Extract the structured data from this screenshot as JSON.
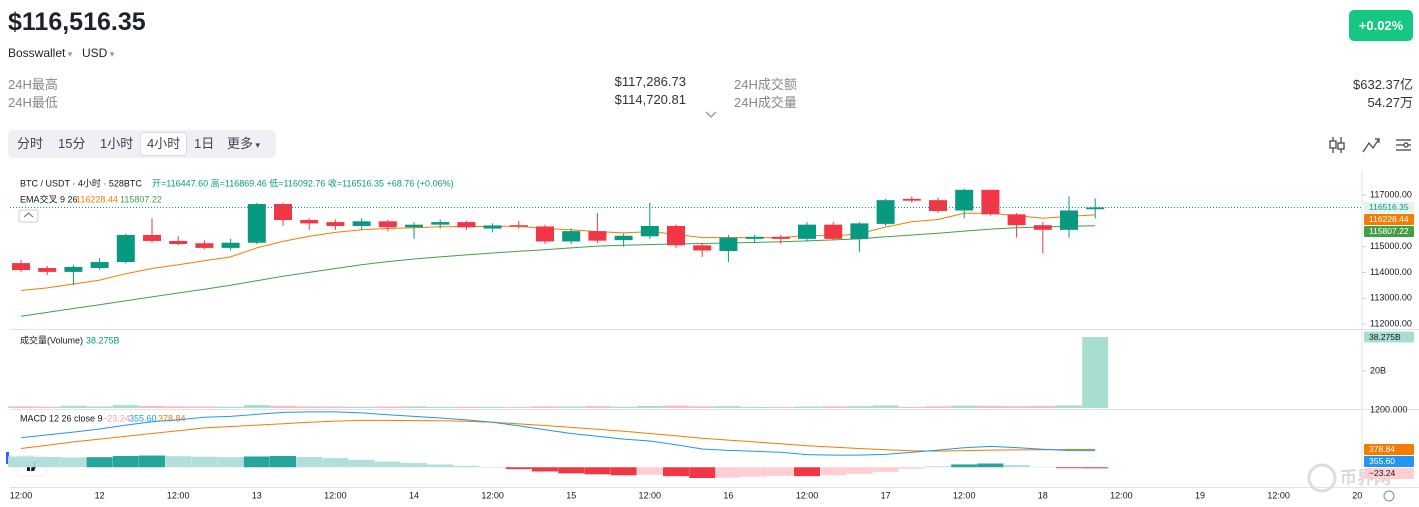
{
  "header": {
    "price": "$116,516.35",
    "wallet": "Bosswallet",
    "currency": "USD",
    "change": "+0.02%"
  },
  "stats": {
    "high_label": "24H最高",
    "high": "$117,286.73",
    "low_label": "24H最低",
    "low": "$114,720.81",
    "turnover_label": "24H成交额",
    "turnover": "$632.37亿",
    "volume_label": "24H成交量",
    "volume": "54.27万"
  },
  "tabs": [
    "分时",
    "15分",
    "1小时",
    "4小时",
    "1日",
    "更多"
  ],
  "active_tab": 3,
  "watermark": "币界网",
  "chart_data": [
    {
      "type": "candlestick",
      "symbol": "BTC / USDT · 4小时 · 528BTC",
      "ohlc_legend": "开=116447.60 高=116869.46 低=116092.76 收=116516.35 +68.76 (+0.06%)",
      "indicator": "EMA交叉 9 26",
      "x_labels": [
        "12:00",
        "12",
        "12:00",
        "13",
        "12:00",
        "14",
        "12:00",
        "15",
        "12:00",
        "16",
        "12:00",
        "17",
        "12:00",
        "18",
        "12:00",
        "19",
        "12:00",
        "20"
      ],
      "up_color": "#089981",
      "down_color": "#f23645",
      "open": [
        114360,
        114170,
        114020,
        114170,
        114400,
        115450,
        115220,
        115130,
        114950,
        115150,
        116650,
        116030,
        115950,
        115800,
        115980,
        115750,
        115850,
        115950,
        115700,
        115830,
        115780,
        115200,
        115600,
        115250,
        115400,
        115800,
        115050,
        114830,
        115300,
        115380,
        115300,
        115850,
        115300,
        115880,
        116850,
        116800,
        116400,
        117200,
        116250,
        115830,
        115650,
        116447.6
      ],
      "high": [
        114480,
        114250,
        114300,
        114550,
        115500,
        116100,
        115400,
        115250,
        115300,
        116700,
        116700,
        116100,
        116050,
        116100,
        116050,
        115950,
        116050,
        116000,
        115900,
        116000,
        115850,
        115700,
        116300,
        115500,
        116700,
        115850,
        115150,
        115450,
        115450,
        115450,
        115950,
        115950,
        115950,
        116850,
        116950,
        116900,
        117250,
        117200,
        116300,
        115950,
        116950,
        116869.46
      ],
      "low": [
        114020,
        113900,
        113500,
        114100,
        114350,
        115150,
        115050,
        114900,
        114850,
        115100,
        115800,
        115650,
        115650,
        115650,
        115600,
        115300,
        115700,
        115650,
        115550,
        115700,
        115100,
        115100,
        115150,
        115000,
        115300,
        114950,
        114600,
        114400,
        115150,
        115100,
        115200,
        115250,
        114800,
        115800,
        116700,
        116300,
        116100,
        116200,
        115350,
        114750,
        115350,
        116092.76
      ],
      "close": [
        114090,
        114020,
        114210,
        114400,
        115450,
        115220,
        115100,
        114950,
        115150,
        116650,
        116030,
        115900,
        115800,
        115980,
        115750,
        115850,
        115950,
        115750,
        115820,
        115780,
        115200,
        115600,
        115230,
        115420,
        115800,
        115050,
        114850,
        115350,
        115380,
        115300,
        115850,
        115300,
        115900,
        116800,
        116780,
        116380,
        117200,
        116250,
        115830,
        115650,
        116400,
        116516.35
      ],
      "ema_fast": {
        "color": "#f57c00",
        "values": [
          113300,
          113400,
          113550,
          113700,
          113950,
          114150,
          114300,
          114450,
          114600,
          114950,
          115200,
          115400,
          115550,
          115650,
          115700,
          115730,
          115770,
          115780,
          115780,
          115790,
          115700,
          115650,
          115580,
          115530,
          115580,
          115480,
          115350,
          115350,
          115350,
          115340,
          115440,
          115410,
          115500,
          115760,
          115960,
          116050,
          116290,
          116290,
          116200,
          116100,
          116170,
          116228.44
        ]
      },
      "ema_slow": {
        "color": "#43a047",
        "values": [
          112300,
          112450,
          112600,
          112750,
          112900,
          113050,
          113200,
          113350,
          113500,
          113680,
          113850,
          114000,
          114150,
          114300,
          114420,
          114520,
          114600,
          114680,
          114750,
          114820,
          114880,
          114950,
          115020,
          115050,
          115080,
          115100,
          115120,
          115140,
          115160,
          115190,
          115220,
          115260,
          115300,
          115380,
          115450,
          115520,
          115600,
          115680,
          115730,
          115760,
          115790,
          115807.22
        ]
      },
      "ylim": [
        111845,
        117775
      ],
      "yticks": [
        {
          "value": 117000,
          "label": "117000.00"
        },
        {
          "value": 115000,
          "label": "115000.00"
        },
        {
          "value": 114000,
          "label": "114000.00"
        },
        {
          "value": 113000,
          "label": "113000.00"
        },
        {
          "value": 112000,
          "label": "112000.00"
        }
      ]
    },
    {
      "type": "bar",
      "title": "成交量(Volume)",
      "up_color": "#a8ddd2",
      "down_color": "#f7bcc1",
      "values": [
        900000000,
        700000000,
        1200000000,
        800000000,
        1500000000,
        1100000000,
        900000000,
        800000000,
        700000000,
        1600000000,
        1200000000,
        900000000,
        800000000,
        700000000,
        800000000,
        900000000,
        600000000,
        700000000,
        600000000,
        500000000,
        900000000,
        800000000,
        1000000000,
        700000000,
        1100000000,
        1300000000,
        900000000,
        1000000000,
        600000000,
        500000000,
        800000000,
        900000000,
        1000000000,
        1400000000,
        600000000,
        900000000,
        1300000000,
        1200000000,
        1000000000,
        1200000000,
        1400000000,
        38275000000
      ],
      "value_labels": [
        null,
        null,
        null,
        null,
        null,
        null,
        null,
        null,
        null,
        null,
        null,
        null,
        null,
        null,
        null,
        null,
        null,
        null,
        null,
        null,
        null,
        null,
        null,
        null,
        null,
        null,
        null,
        null,
        null,
        null,
        null,
        null,
        null,
        null,
        null,
        null,
        null,
        null,
        null,
        null,
        null,
        "38.275B"
      ],
      "ylim": [
        0,
        41000000000
      ],
      "yticks": [
        {
          "value": 20000000000,
          "label": "20B"
        }
      ],
      "clipped_label": "1200.000"
    },
    {
      "type": "macd",
      "title": "MACD 12 26 close 9",
      "histogram": {
        "last_label": "−23.24",
        "values": [
          230,
          220,
          210,
          215,
          240,
          250,
          235,
          225,
          215,
          230,
          240,
          220,
          195,
          160,
          120,
          90,
          60,
          30,
          0,
          -40,
          -90,
          -130,
          -150,
          -170,
          -160,
          -190,
          -230,
          -220,
          -200,
          -180,
          -190,
          -170,
          -140,
          -100,
          -30,
          20,
          60,
          80,
          50,
          10,
          -20,
          -23.24
        ]
      },
      "macd": {
        "color": "#2196f3",
        "last_label": "355.60",
        "values": [
          630,
          690,
          750,
          815,
          900,
          970,
          1015,
          1065,
          1085,
          1130,
          1170,
          1180,
          1180,
          1160,
          1120,
          1085,
          1050,
          1010,
          960,
          885,
          800,
          720,
          660,
          600,
          560,
          480,
          390,
          360,
          340,
          320,
          270,
          260,
          260,
          275,
          320,
          365,
          415,
          445,
          420,
          385,
          358,
          355.6
        ]
      },
      "signal": {
        "color": "#f57c00",
        "last_label": "378.84",
        "values": [
          400,
          470,
          540,
          600,
          660,
          720,
          780,
          840,
          870,
          900,
          930,
          960,
          985,
          1000,
          1000,
          995,
          990,
          980,
          960,
          925,
          890,
          850,
          810,
          770,
          720,
          670,
          620,
          580,
          540,
          500,
          460,
          430,
          400,
          375,
          350,
          345,
          355,
          365,
          370,
          375,
          378,
          378.84
        ]
      },
      "ylim": [
        -400,
        1200
      ]
    }
  ]
}
